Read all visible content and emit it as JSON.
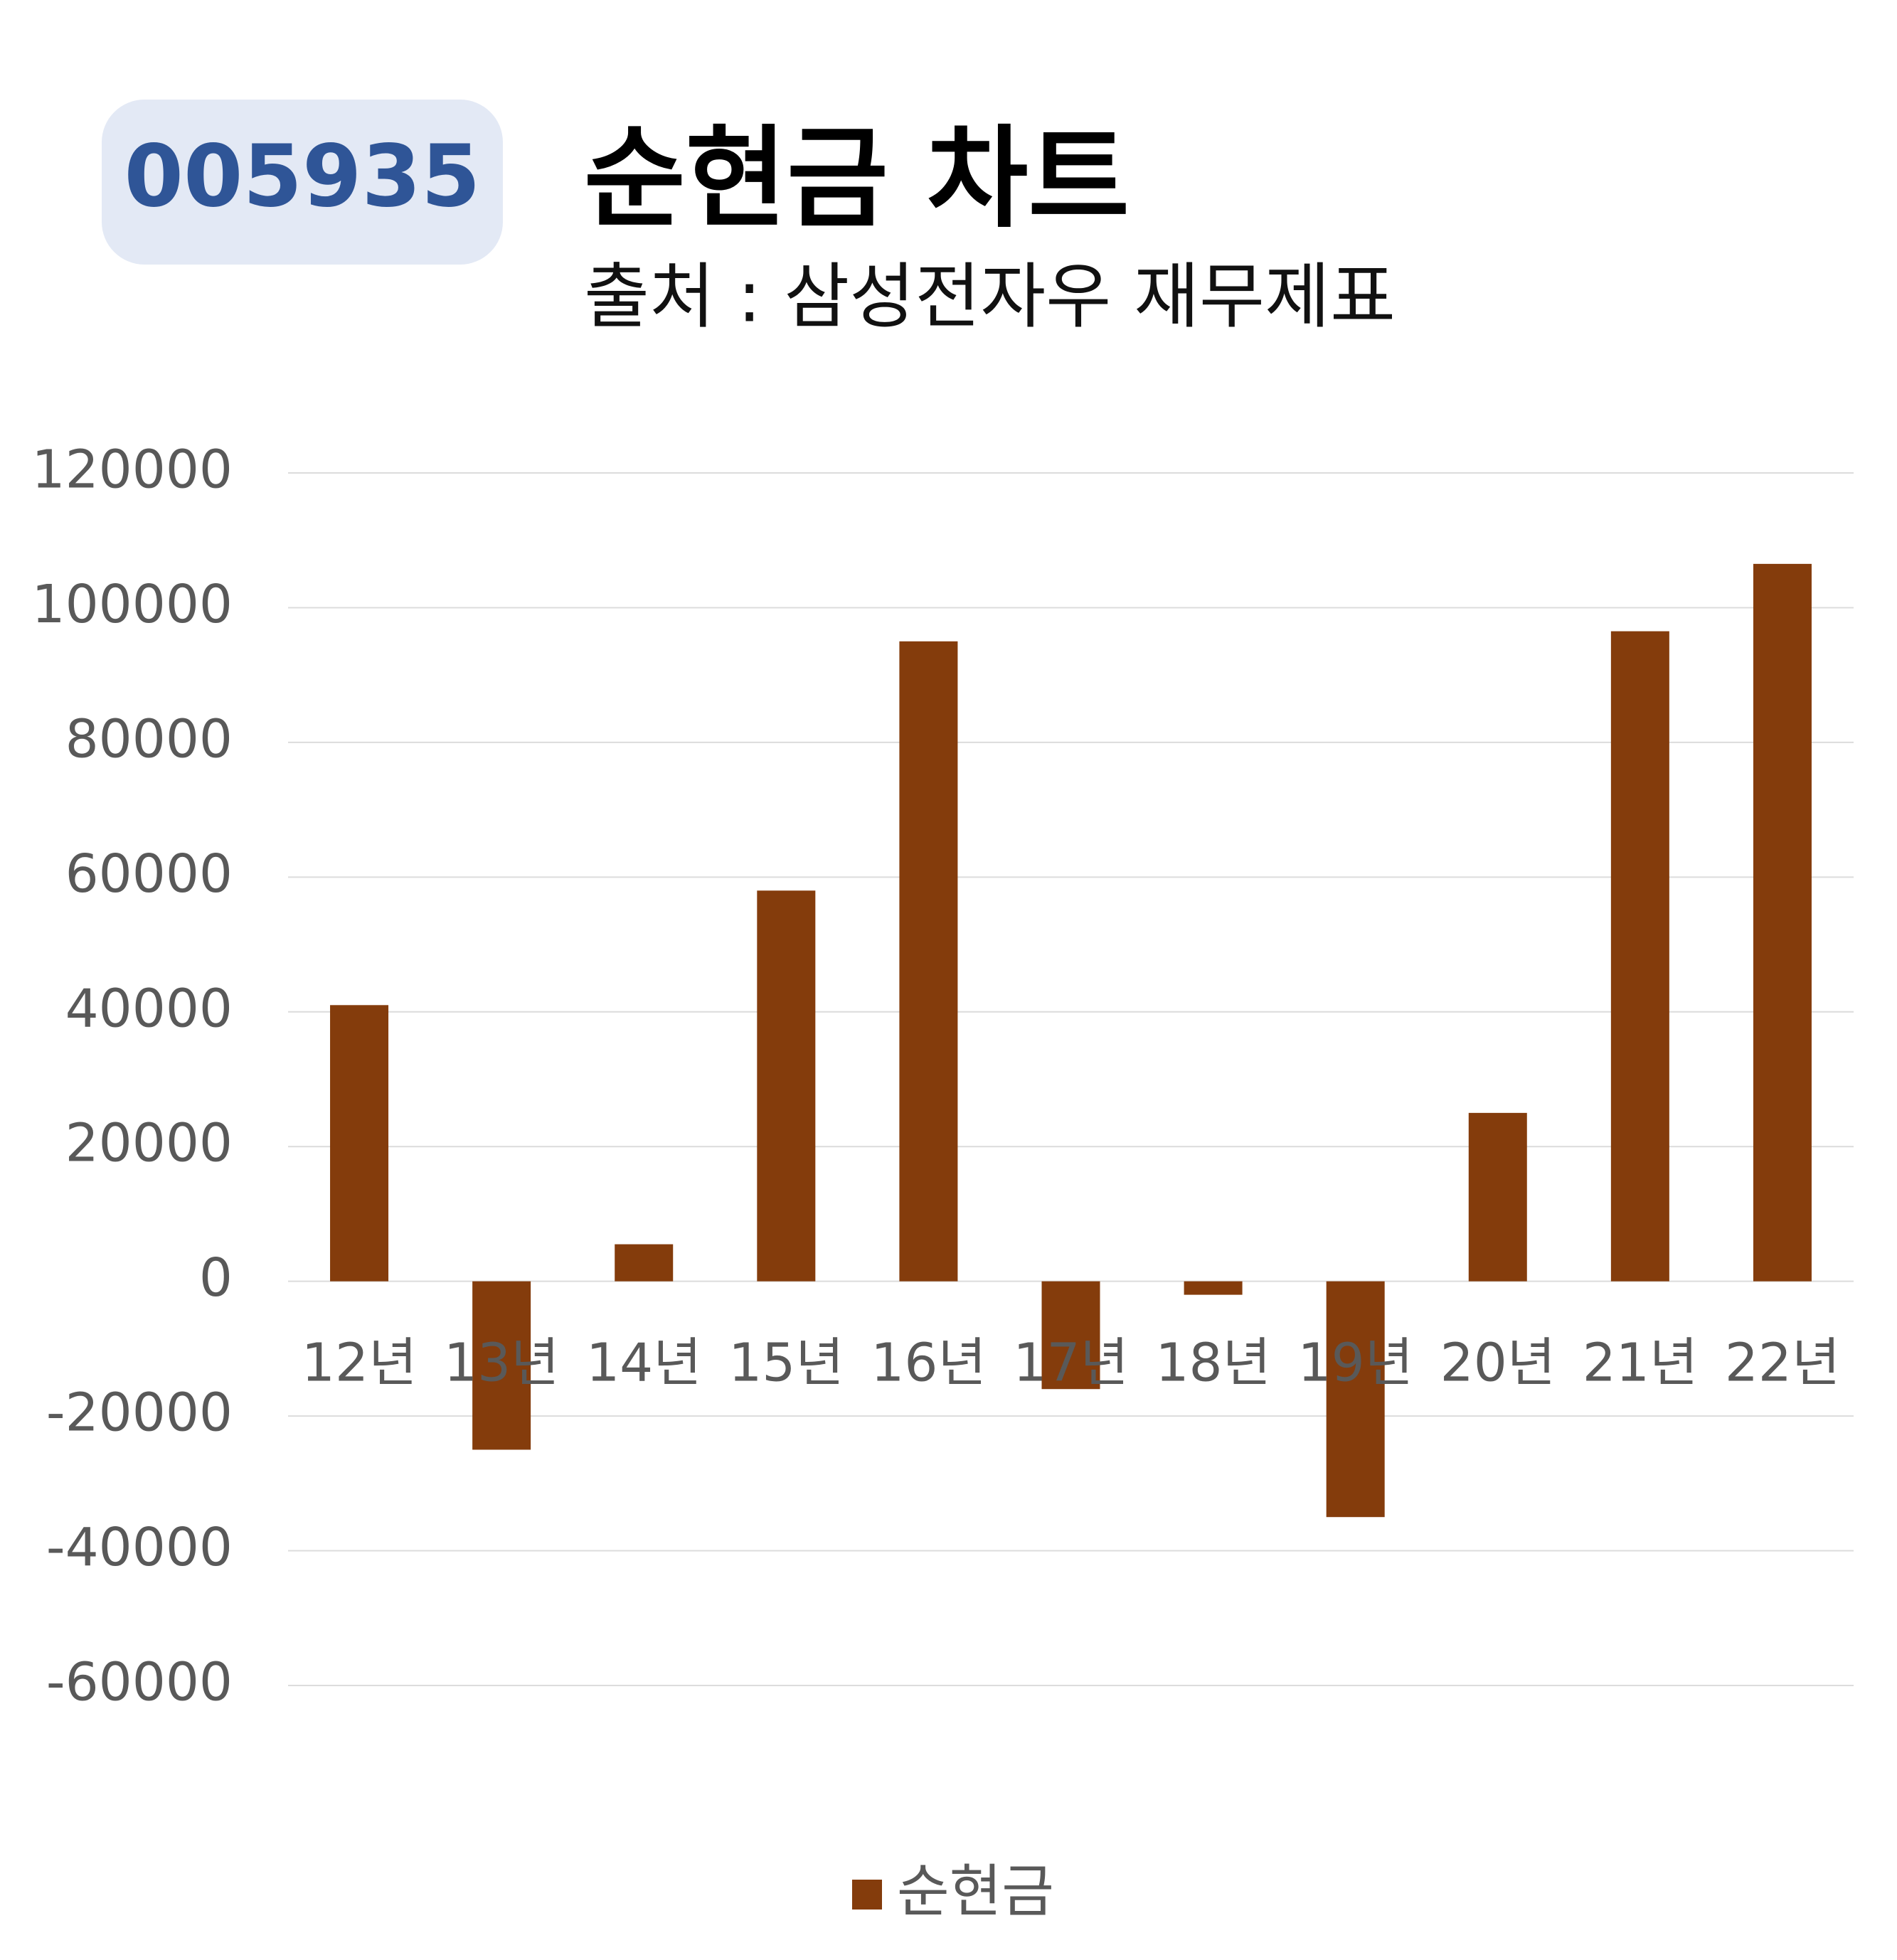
{
  "badge": "005935",
  "chart_data": {
    "type": "bar",
    "title": "순현금 차트",
    "subtitle": "출처 : 삼성전자우 재무제표",
    "categories": [
      "12년",
      "13년",
      "14년",
      "15년",
      "16년",
      "17년",
      "18년",
      "19년",
      "20년",
      "21년",
      "22년"
    ],
    "series": [
      {
        "name": "순현금",
        "color": "#843c0c",
        "values": [
          41000,
          -25000,
          5500,
          58000,
          95000,
          -16000,
          -2000,
          -35000,
          25000,
          96500,
          106500
        ]
      }
    ],
    "ylim": [
      -60000,
      120000
    ],
    "yticks": [
      -60000,
      -40000,
      -20000,
      0,
      20000,
      40000,
      60000,
      80000,
      100000,
      120000
    ],
    "grid": true,
    "legend": "bottom"
  }
}
